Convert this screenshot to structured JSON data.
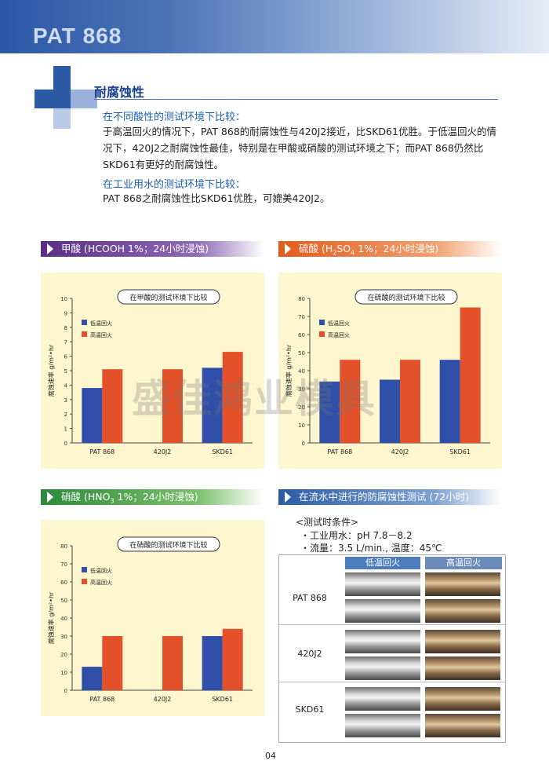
{
  "header": {
    "title": "PAT 868"
  },
  "section": {
    "title": "耐腐蚀性",
    "p1_head": "在不同酸性的测试环境下比较：",
    "p1_lines": [
      "于高温回火的情况下，PAT 868的耐腐蚀性与420J2接近，比SKD61优胜。于低温回火的情",
      "况下，420J2之耐腐蚀性最佳，特别是在甲酸或硝酸的测试环境之下；而PAT 868仍然比",
      "SKD61有更好的耐腐蚀性。"
    ],
    "p2_head": "在工业用水的测试环境下比较：",
    "p2_line": "PAT 868之耐腐蚀性比SKD61优胜，可媲美420J2。"
  },
  "banners": {
    "formic": "甲酸 (HCOOH 1%；24小时浸蚀)",
    "sulfuric_pre": "硫酸 (H",
    "sulfuric_sub1": "2",
    "sulfuric_mid": "SO",
    "sulfuric_sub2": "4",
    "sulfuric_post": " 1%；24小时浸蚀)",
    "nitric_pre": "硝酸 (HNO",
    "nitric_sub": "3",
    "nitric_post": " 1%；24小时浸蚀)",
    "flowing": "在流水中进行的防腐蚀性测试 (72小时)"
  },
  "colors": {
    "low": "#2f4fa8",
    "high": "#e2512a",
    "chart_bg": "#fdf6cf"
  },
  "chart_data": [
    {
      "type": "bar",
      "title": "在甲酸的测试环境下比较",
      "ylabel": "腐蚀速率 g/m²•hr",
      "categories": [
        "PAT 868",
        "420J2",
        "SKD61"
      ],
      "series": [
        {
          "name": "低温回火",
          "values": [
            3.8,
            0,
            5.2
          ]
        },
        {
          "name": "高温回火",
          "values": [
            5.1,
            5.1,
            6.3
          ]
        }
      ],
      "ylim": [
        0,
        10
      ],
      "yticks": [
        "0",
        "1",
        "2",
        "3",
        "4",
        "5",
        "6",
        "7",
        "8",
        "9",
        "10"
      ],
      "legend": "top-left"
    },
    {
      "type": "bar",
      "title": "在硫酸的测试环境下比较",
      "ylabel": "腐蚀速率 g/m²•hr",
      "categories": [
        "PAT 868",
        "420J2",
        "SKD61"
      ],
      "series": [
        {
          "name": "低温回火",
          "values": [
            34,
            35,
            46
          ]
        },
        {
          "name": "高温回火",
          "values": [
            46,
            46,
            75
          ]
        }
      ],
      "ylim": [
        0,
        80
      ],
      "yticks": [
        "0",
        "10",
        "20",
        "30",
        "40",
        "50",
        "60",
        "70",
        "80"
      ],
      "legend": "top-left"
    },
    {
      "type": "bar",
      "title": "在硝酸的测试环境下比较",
      "ylabel": "腐蚀速率 g/m²•hr",
      "categories": [
        "PAT 868",
        "420J2",
        "SKD61"
      ],
      "series": [
        {
          "name": "低温回火",
          "values": [
            13,
            0,
            30
          ]
        },
        {
          "name": "高温回火",
          "values": [
            30,
            30,
            34
          ]
        }
      ],
      "ylim": [
        0,
        80
      ],
      "yticks": [
        "0",
        "10",
        "20",
        "30",
        "40",
        "50",
        "60",
        "70",
        "80"
      ],
      "legend": "top-left"
    }
  ],
  "conditions": {
    "heading": "<测试时条件>",
    "water": "・工业用水：pH 7.8－8.2",
    "flow": "・流量：3.5 L/min., 温度：45℃"
  },
  "photo_table": {
    "col_low": "低温回火",
    "col_high": "高温回火",
    "rows": [
      "PAT 868",
      "420J2",
      "SKD61"
    ]
  },
  "watermark": "盛佳鸿业模具",
  "page_number": "04"
}
